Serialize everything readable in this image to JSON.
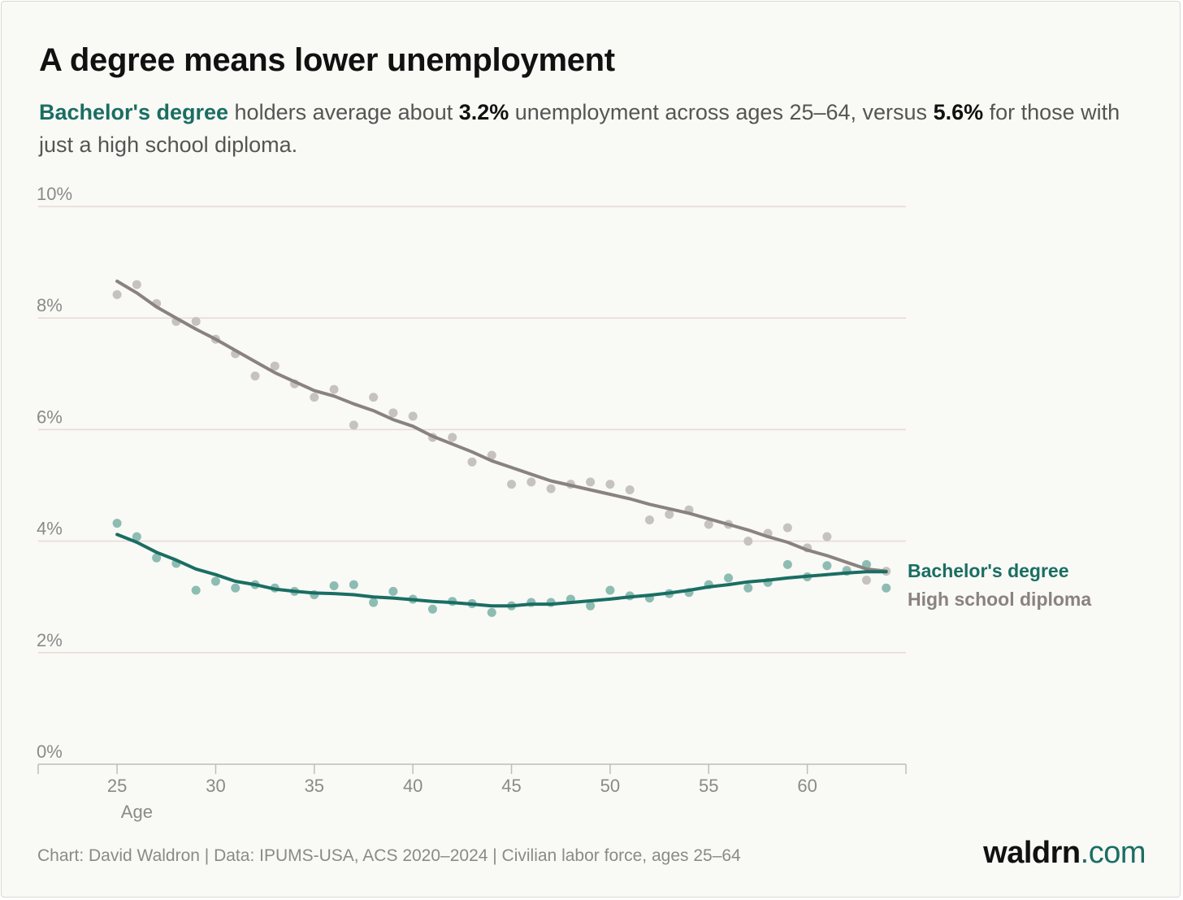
{
  "header": {
    "title": "A degree means lower unemployment",
    "subtitle_parts": {
      "highlight": "Bachelor's degree",
      "text1": " holders average about ",
      "value1": "3.2%",
      "text2": " unemployment across ages 25–64, versus ",
      "value2": "5.6%",
      "text3": " for those with just a high school diploma."
    }
  },
  "footer": {
    "source": "Chart: David Waldron | Data: IPUMS-USA, ACS 2020–2024 | Civilian labor force, ages 25–64",
    "brand_main": "waldrn",
    "brand_tld": ".com"
  },
  "colors": {
    "bachelor": "#1a6e63",
    "bachelor_points": "#8dbcb3",
    "highschool": "#8a8281",
    "highschool_points": "#c6c3bf",
    "gridline": "#e7d9d6",
    "axis": "#bdbdbd",
    "tick_text": "#8a8a8a"
  },
  "chart_data": {
    "type": "line",
    "xlabel": "Age",
    "ylabel": "",
    "xlim": [
      21,
      65
    ],
    "ylim": [
      0,
      10
    ],
    "x_ticks": [
      25,
      30,
      35,
      40,
      45,
      50,
      55,
      60
    ],
    "y_ticks": [
      0,
      2,
      4,
      6,
      8,
      10
    ],
    "y_tick_labels": [
      "0%",
      "2%",
      "4%",
      "6%",
      "8%",
      "10%"
    ],
    "grid": "horizontal",
    "legend": "direct labels at right end of lines",
    "x": [
      25,
      26,
      27,
      28,
      29,
      30,
      31,
      32,
      33,
      34,
      35,
      36,
      37,
      38,
      39,
      40,
      41,
      42,
      43,
      44,
      45,
      46,
      47,
      48,
      49,
      50,
      51,
      52,
      53,
      54,
      55,
      56,
      57,
      58,
      59,
      60,
      61,
      62,
      63,
      64
    ],
    "series": [
      {
        "name": "Bachelor's degree",
        "color": "#1a6e63",
        "points": [
          4.32,
          4.08,
          3.7,
          3.6,
          3.12,
          3.28,
          3.16,
          3.22,
          3.16,
          3.1,
          3.04,
          3.2,
          3.22,
          2.9,
          3.1,
          2.96,
          2.78,
          2.92,
          2.88,
          2.72,
          2.84,
          2.9,
          2.9,
          2.96,
          2.84,
          3.12,
          3.02,
          2.98,
          3.06,
          3.08,
          3.22,
          3.34,
          3.16,
          3.26,
          3.58,
          3.36,
          3.56,
          3.46,
          3.58,
          3.16
        ],
        "trend": [
          4.12,
          3.98,
          3.8,
          3.66,
          3.5,
          3.4,
          3.28,
          3.22,
          3.14,
          3.1,
          3.07,
          3.06,
          3.04,
          3.0,
          2.98,
          2.95,
          2.92,
          2.9,
          2.87,
          2.84,
          2.84,
          2.87,
          2.87,
          2.9,
          2.93,
          2.96,
          3.0,
          3.03,
          3.07,
          3.12,
          3.18,
          3.22,
          3.27,
          3.3,
          3.34,
          3.37,
          3.4,
          3.43,
          3.45,
          3.45
        ]
      },
      {
        "name": "High school diploma",
        "color": "#8a8281",
        "points": [
          8.42,
          8.6,
          8.26,
          7.94,
          7.94,
          7.62,
          7.36,
          6.96,
          7.14,
          6.82,
          6.58,
          6.72,
          6.08,
          6.58,
          6.3,
          6.24,
          5.86,
          5.86,
          5.42,
          5.54,
          5.02,
          5.06,
          4.94,
          5.02,
          5.06,
          5.02,
          4.92,
          4.38,
          4.48,
          4.56,
          4.3,
          4.3,
          4.0,
          4.14,
          4.24,
          3.88,
          4.08,
          3.48,
          3.3,
          3.46
        ],
        "trend": [
          8.66,
          8.45,
          8.2,
          8.0,
          7.8,
          7.62,
          7.42,
          7.22,
          7.02,
          6.86,
          6.7,
          6.6,
          6.46,
          6.34,
          6.18,
          6.06,
          5.88,
          5.74,
          5.6,
          5.44,
          5.32,
          5.2,
          5.08,
          5.0,
          4.92,
          4.84,
          4.76,
          4.66,
          4.58,
          4.5,
          4.4,
          4.3,
          4.2,
          4.08,
          3.98,
          3.84,
          3.74,
          3.62,
          3.5,
          3.46
        ]
      }
    ]
  }
}
